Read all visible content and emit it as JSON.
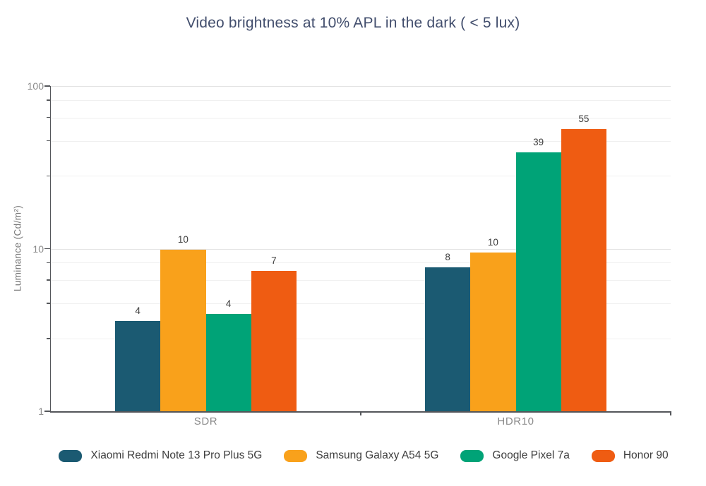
{
  "chart_data": {
    "type": "bar",
    "title": "Video brightness at 10% APL in the dark ( < 5 lux)",
    "xlabel": "",
    "ylabel": "Luminance (Cd/m²)",
    "yscale": "log",
    "ylim": [
      1,
      100
    ],
    "y_major_ticks": [
      "1",
      "10",
      "100"
    ],
    "y_minor_tick_values": [
      2.8,
      4.6,
      6.4,
      8.2,
      28,
      46,
      64,
      82
    ],
    "grid": true,
    "legend_position": "bottom",
    "categories": [
      "SDR",
      "HDR10"
    ],
    "series": [
      {
        "name": "Xiaomi Redmi Note 13 Pro Plus 5G",
        "color": "#1b5a72",
        "values": [
          4,
          8
        ],
        "precise_values": [
          3.6,
          7.7
        ]
      },
      {
        "name": "Samsung Galaxy A54 5G",
        "color": "#f9a11b",
        "values": [
          10,
          10
        ],
        "precise_values": [
          9.85,
          9.5
        ]
      },
      {
        "name": "Google Pixel 7a",
        "color": "#00a377",
        "values": [
          4,
          39
        ],
        "precise_values": [
          3.97,
          39.1
        ]
      },
      {
        "name": "Honor 90",
        "color": "#ef5c12",
        "values": [
          7,
          55
        ],
        "precise_values": [
          7.3,
          54.5
        ]
      }
    ]
  },
  "colors": {
    "title": "#424e6d",
    "axis_line": "#54565a",
    "tick_label": "#8a8a8a",
    "axis_title": "#7a7a7a",
    "data_label": "#3d3d3d",
    "legend_label": "#3d3d3d",
    "grid_major": "#e3e3e3",
    "grid_minor": "#f0f0f0",
    "background": "#ffffff"
  }
}
